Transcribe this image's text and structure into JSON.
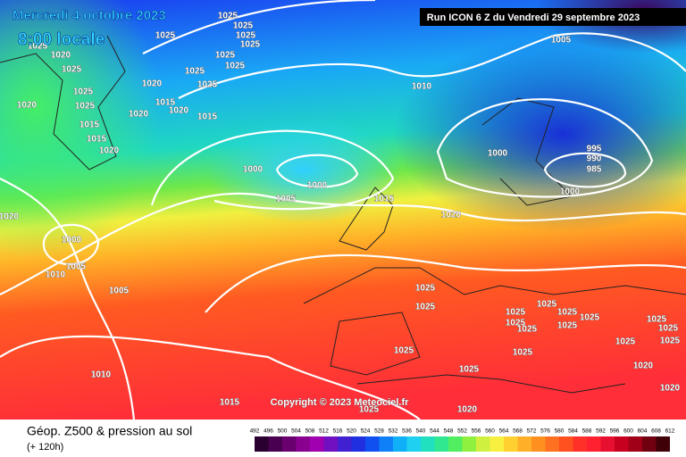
{
  "header": {
    "date": "Mercredi 4 octobre 2023",
    "time": "8:00 locale",
    "run": "Run ICON 6 Z du Vendredi 29 septembre 2023"
  },
  "copyright": "Copyright © 2023 Meteociel.fr",
  "footer": {
    "title": "Géop. Z500 & pression au sol",
    "lead": "(+ 120h)"
  },
  "scale": {
    "ticks": [
      492,
      496,
      500,
      504,
      508,
      512,
      516,
      520,
      524,
      528,
      532,
      536,
      540,
      544,
      548,
      552,
      556,
      560,
      564,
      568,
      572,
      576,
      580,
      584,
      588,
      592,
      596,
      600,
      604,
      608,
      612
    ]
  },
  "isobar_labels": [
    1025,
    1025,
    1025,
    1025,
    1025,
    1025,
    1025,
    1025,
    1025,
    1025,
    1025,
    1025,
    1025,
    1020,
    1020,
    1020,
    1020,
    1020,
    1020,
    1020,
    1020,
    1015,
    1015,
    1015,
    1015,
    1015,
    1015,
    1010,
    1010,
    1010,
    1005,
    1005,
    1005,
    1005,
    1000,
    1000,
    1000,
    1000,
    1000,
    995,
    990,
    985,
    1025,
    1025,
    1025,
    1025,
    1025,
    1025,
    1025,
    1025,
    1025,
    1025,
    1025,
    1025,
    1025,
    1025,
    1025,
    1025,
    1020,
    1020,
    1020,
    1025
  ]
}
